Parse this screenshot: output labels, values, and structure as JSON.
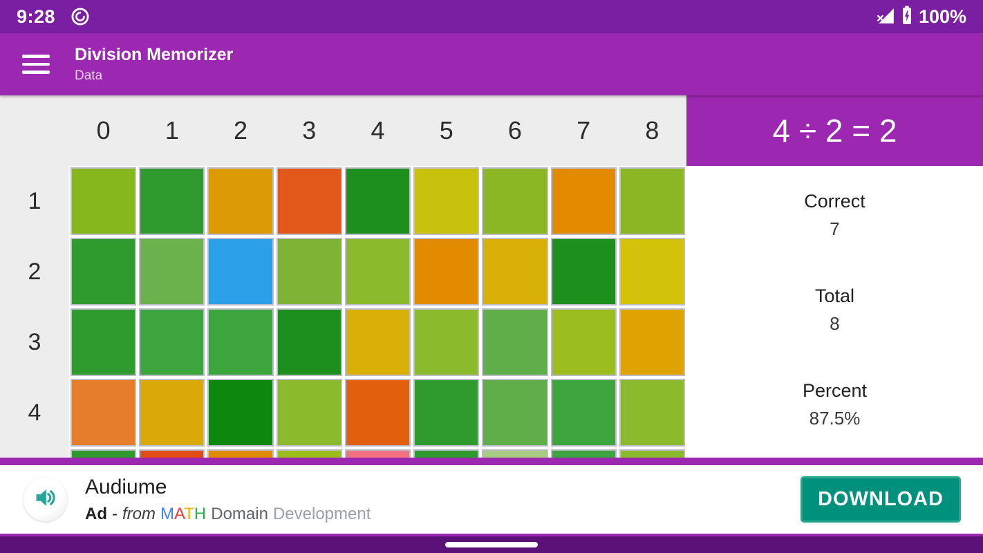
{
  "status_bar": {
    "time": "9:28",
    "battery": "100%"
  },
  "app_bar": {
    "title": "Division Memorizer",
    "subtitle": "Data"
  },
  "grid": {
    "col_headers": [
      "0",
      "1",
      "2",
      "3",
      "4",
      "5",
      "6",
      "7",
      "8"
    ],
    "rows": [
      {
        "label": "1",
        "colors": [
          "#86B71C",
          "#2F9B2F",
          "#DC9B05",
          "#E2571A",
          "#1D8F1D",
          "#C9C20C",
          "#8AB723",
          "#E28B00",
          "#8AB723"
        ]
      },
      {
        "label": "2",
        "colors": [
          "#2F9B2F",
          "#6BB24C",
          "#2B9FE8",
          "#7DB435",
          "#8CBA2D",
          "#E28B00",
          "#D9B007",
          "#1D8F1D",
          "#D2C20A"
        ]
      },
      {
        "label": "3",
        "colors": [
          "#2F9B2F",
          "#3DA53D",
          "#3DA53D",
          "#1D8F1D",
          "#D9B007",
          "#8CBA2D",
          "#5FAE49",
          "#9BBD1E",
          "#DFA302"
        ]
      },
      {
        "label": "4",
        "colors": [
          "#E57D2B",
          "#D9A908",
          "#0D870D",
          "#8CBA2D",
          "#E2600D",
          "#2F9B2F",
          "#5FAE49",
          "#3DA53D",
          "#8CBA2D"
        ]
      },
      {
        "label": "",
        "colors": [
          "#2F9B2F",
          "#E24D17",
          "#E28B00",
          "#9BBD1E",
          "#F2737F",
          "#2F9B2F",
          "#A9CE80",
          "#3DA53D",
          "#8CBA2D"
        ]
      }
    ]
  },
  "panel": {
    "equation": "4 ÷ 2 = 2",
    "stats": [
      {
        "label": "Correct",
        "value": "7"
      },
      {
        "label": "Total",
        "value": "8"
      },
      {
        "label": "Percent",
        "value": "87.5%"
      }
    ]
  },
  "ad": {
    "title": "Audiume",
    "badge": "Ad",
    "dash": "-",
    "from": "from",
    "brand": [
      {
        "ch": "M",
        "color": "#4285F4"
      },
      {
        "ch": "A",
        "color": "#EA4335"
      },
      {
        "ch": "T",
        "color": "#F4B400"
      },
      {
        "ch": "H",
        "color": "#34A853"
      }
    ],
    "brand_rest": "Domain",
    "suffix": "Development",
    "download": "DOWNLOAD"
  },
  "colors": {
    "status_bar": "#7B1FA2",
    "app_bar": "#9C27B0",
    "download_teal": "#00917C",
    "nav_bar": "#5C1178"
  }
}
